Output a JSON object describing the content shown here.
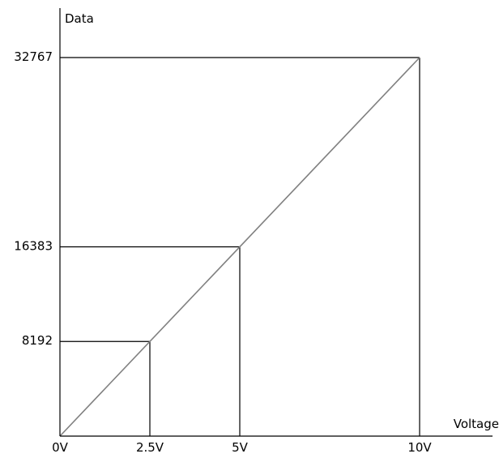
{
  "chart_data": {
    "type": "line",
    "xlabel": "Voltage",
    "ylabel": "Data",
    "x_ticks": [
      {
        "value": 0,
        "label": "0V"
      },
      {
        "value": 2.5,
        "label": "2.5V"
      },
      {
        "value": 5,
        "label": "5V"
      },
      {
        "value": 10,
        "label": "10V"
      }
    ],
    "y_ticks": [
      {
        "value": 8192,
        "label": "8192"
      },
      {
        "value": 16383,
        "label": "16383"
      },
      {
        "value": 32767,
        "label": "32767"
      }
    ],
    "xlim": [
      0,
      10
    ],
    "ylim": [
      0,
      32767
    ],
    "series": [
      {
        "x": [
          0,
          10
        ],
        "y": [
          0,
          32767
        ]
      }
    ],
    "reference_points": [
      {
        "x": 2.5,
        "y": 8192
      },
      {
        "x": 5,
        "y": 16383
      },
      {
        "x": 10,
        "y": 32767
      }
    ],
    "grid": false,
    "legend": "none",
    "colors": {
      "axis": "#000000",
      "line": "#808080",
      "guides": "#000000"
    }
  }
}
